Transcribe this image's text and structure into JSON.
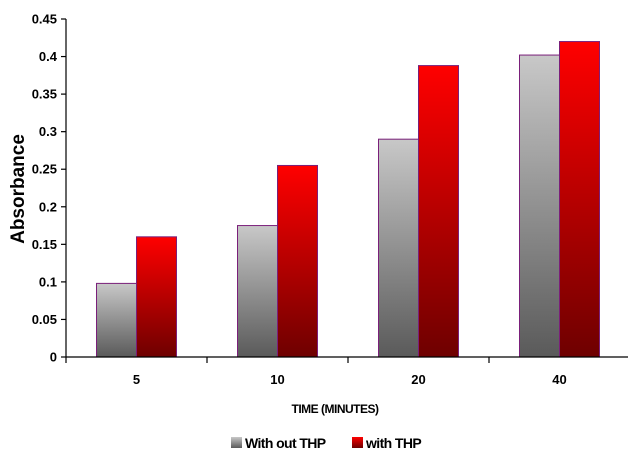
{
  "chart_data": {
    "type": "bar",
    "title": "",
    "xlabel": "TIME (MINUTES)",
    "ylabel": "Absorbance",
    "categories": [
      "5",
      "10",
      "20",
      "40"
    ],
    "series": [
      {
        "name": "With out THP",
        "values": [
          0.098,
          0.175,
          0.29,
          0.402
        ],
        "color_top": "#c8c8c8",
        "color_bottom": "#5a5a5a"
      },
      {
        "name": "with THP",
        "values": [
          0.16,
          0.255,
          0.388,
          0.42
        ],
        "color_top": "#ff0000",
        "color_bottom": "#6e0000"
      }
    ],
    "ylim": [
      0,
      0.45
    ],
    "yticks": [
      "0",
      "0.05",
      "0.1",
      "0.15",
      "0.2",
      "0.25",
      "0.3",
      "0.35",
      "0.4",
      "0.45"
    ],
    "grid": false,
    "legend_position": "bottom",
    "bar_outline_color": "#7a1f7a"
  }
}
